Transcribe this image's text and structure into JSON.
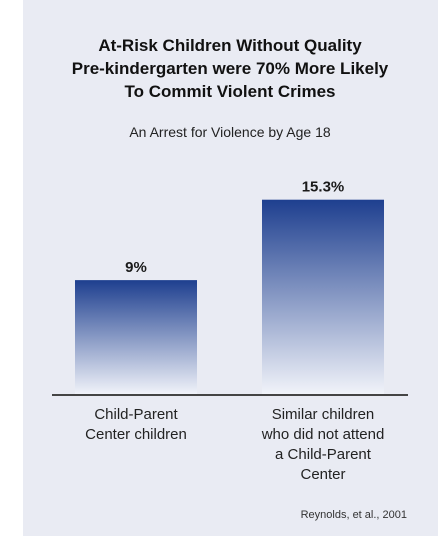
{
  "chart_data": {
    "type": "bar",
    "title": [
      "At-Risk Children Without Quality",
      "Pre-kindergarten were 70% More Likely",
      "To Commit Violent Crimes"
    ],
    "subtitle": "An Arrest for Violence by Age 18",
    "categories": [
      [
        "Child-Parent",
        "Center children"
      ],
      [
        "Similar children",
        "who did not attend",
        "a Child-Parent",
        "Center"
      ]
    ],
    "values": [
      9,
      15.3
    ],
    "value_labels": [
      "9%",
      "15.3%"
    ],
    "ylim": [
      0,
      17
    ],
    "grid": false,
    "source": "Reynolds, et al., 2001",
    "colors": {
      "bar_top": "#1e3f8f",
      "bar_bottom": "#f2f4fa",
      "panel": "#e9ebf3",
      "baseline": "#444444"
    }
  }
}
